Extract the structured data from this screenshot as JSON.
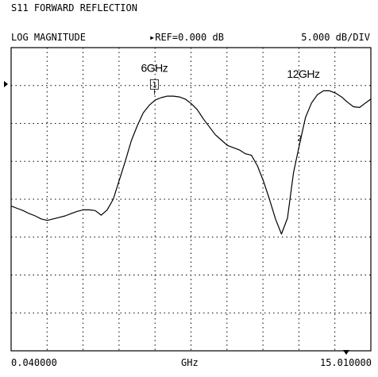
{
  "chart_data": {
    "type": "line",
    "title": "S11 FORWARD REFLECTION",
    "format_label": "LOG MAGNITUDE",
    "ref_label": "REF=0.000 dB",
    "scale_label": "5.000 dB/DIV",
    "xlabel": "GHz",
    "x_start_label": "0.040000",
    "x_stop_label": "15.010000",
    "xlim": [
      0.04,
      15.01
    ],
    "ylim": [
      -40,
      0
    ],
    "grid": true,
    "series": [
      {
        "values_db": [
          [
            0.04,
            -20.9
          ],
          [
            0.29,
            -21.2
          ],
          [
            0.54,
            -21.5
          ],
          [
            0.79,
            -21.9
          ],
          [
            1.04,
            -22.2
          ],
          [
            1.29,
            -22.6
          ],
          [
            1.54,
            -22.8
          ],
          [
            1.79,
            -22.6
          ],
          [
            2.04,
            -22.4
          ],
          [
            2.29,
            -22.2
          ],
          [
            2.54,
            -21.9
          ],
          [
            2.79,
            -21.6
          ],
          [
            3.04,
            -21.4
          ],
          [
            3.29,
            -21.4
          ],
          [
            3.54,
            -21.5
          ],
          [
            3.79,
            -22.1
          ],
          [
            4.04,
            -21.4
          ],
          [
            4.29,
            -20.0
          ],
          [
            4.54,
            -17.5
          ],
          [
            4.79,
            -15.0
          ],
          [
            5.04,
            -12.3
          ],
          [
            5.29,
            -10.3
          ],
          [
            5.54,
            -8.6
          ],
          [
            5.79,
            -7.6
          ],
          [
            6.04,
            -6.9
          ],
          [
            6.29,
            -6.6
          ],
          [
            6.54,
            -6.4
          ],
          [
            6.79,
            -6.4
          ],
          [
            7.04,
            -6.5
          ],
          [
            7.29,
            -6.8
          ],
          [
            7.54,
            -7.4
          ],
          [
            7.79,
            -8.2
          ],
          [
            8.04,
            -9.4
          ],
          [
            8.54,
            -11.5
          ],
          [
            8.79,
            -12.2
          ],
          [
            9.04,
            -12.9
          ],
          [
            9.29,
            -13.2
          ],
          [
            9.54,
            -13.5
          ],
          [
            9.79,
            -14.0
          ],
          [
            10.04,
            -14.2
          ],
          [
            10.29,
            -15.6
          ],
          [
            10.54,
            -17.6
          ],
          [
            10.79,
            -20.0
          ],
          [
            11.04,
            -22.6
          ],
          [
            11.29,
            -24.6
          ],
          [
            11.54,
            -22.5
          ],
          [
            11.79,
            -16.5
          ],
          [
            12.04,
            -12.8
          ],
          [
            12.29,
            -9.2
          ],
          [
            12.54,
            -7.3
          ],
          [
            12.79,
            -6.2
          ],
          [
            13.04,
            -5.7
          ],
          [
            13.29,
            -5.7
          ],
          [
            13.54,
            -6.0
          ],
          [
            13.79,
            -6.5
          ],
          [
            14.04,
            -7.2
          ],
          [
            14.29,
            -7.8
          ],
          [
            14.54,
            -7.9
          ],
          [
            14.79,
            -7.3
          ],
          [
            15.01,
            -6.8
          ]
        ]
      }
    ],
    "markers": [
      {
        "label": "1",
        "x": 6.0,
        "y": -5.9,
        "boxed": true
      },
      {
        "label": "2",
        "x": 12.04,
        "y": -12.4,
        "boxed": false
      }
    ],
    "annotations": [
      {
        "text": "6GHz",
        "x": 6.0,
        "y": -3.2
      },
      {
        "text": "12GHz",
        "x": 12.2,
        "y": -4.0
      }
    ]
  }
}
